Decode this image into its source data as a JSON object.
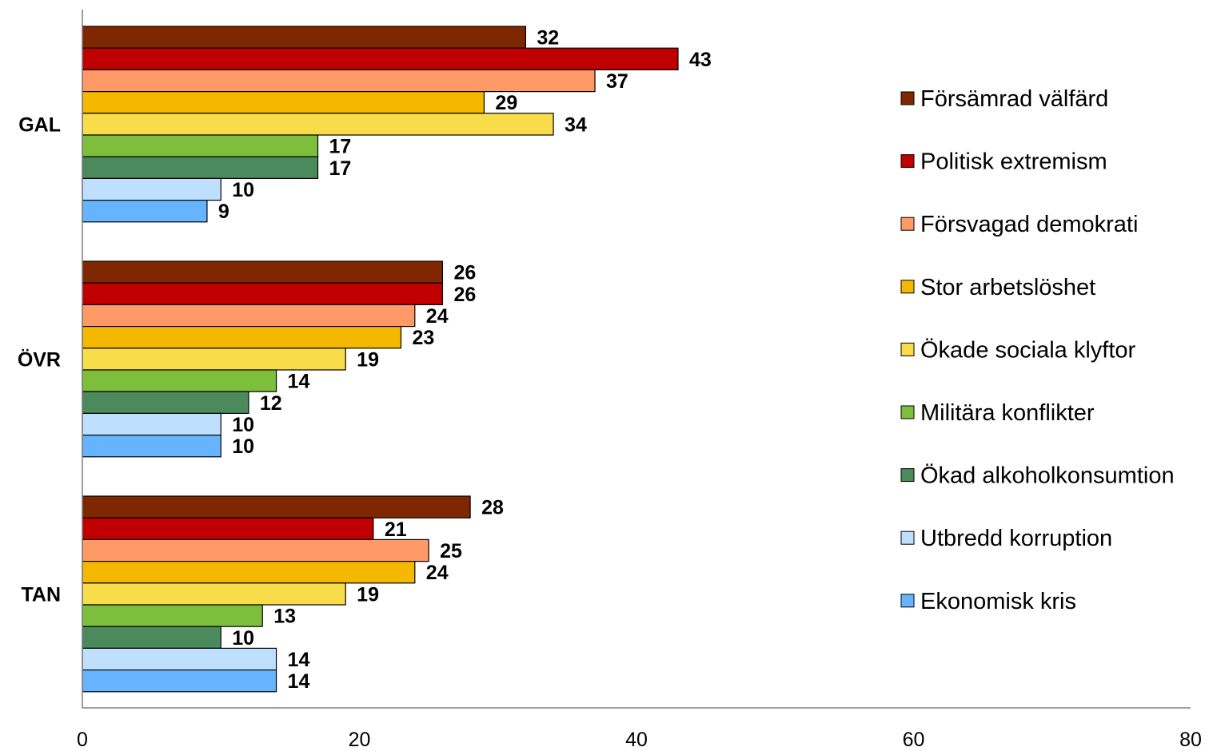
{
  "chart_data": {
    "type": "bar",
    "orientation": "horizontal",
    "categories": [
      "GAL",
      "ÖVR",
      "TAN"
    ],
    "series": [
      {
        "name": "Försämrad välfärd",
        "color": "#7f2700",
        "values": [
          32,
          26,
          28
        ]
      },
      {
        "name": "Politisk extremism",
        "color": "#c00000",
        "values": [
          43,
          26,
          21
        ]
      },
      {
        "name": "Försvagad demokrati",
        "color": "#ff9966",
        "values": [
          37,
          24,
          25
        ]
      },
      {
        "name": "Stor arbetslöshet",
        "color": "#f5b800",
        "values": [
          29,
          23,
          24
        ]
      },
      {
        "name": "Ökade sociala klyftor",
        "color": "#f9dc4a",
        "values": [
          34,
          19,
          19
        ]
      },
      {
        "name": "Militära konflikter",
        "color": "#7dbf3c",
        "values": [
          17,
          14,
          13
        ]
      },
      {
        "name": "Ökad alkoholkonsumtion",
        "color": "#4a8a5c",
        "values": [
          17,
          12,
          10
        ]
      },
      {
        "name": "Utbredd korruption",
        "color": "#bfdfff",
        "values": [
          10,
          10,
          14
        ]
      },
      {
        "name": "Ekonomisk kris",
        "color": "#66b3ff",
        "values": [
          9,
          10,
          14
        ]
      }
    ],
    "xlim": [
      0,
      80
    ],
    "xticks": [
      0,
      20,
      40,
      60,
      80
    ],
    "grid": false,
    "legend_position": "right",
    "data_labels": true
  }
}
